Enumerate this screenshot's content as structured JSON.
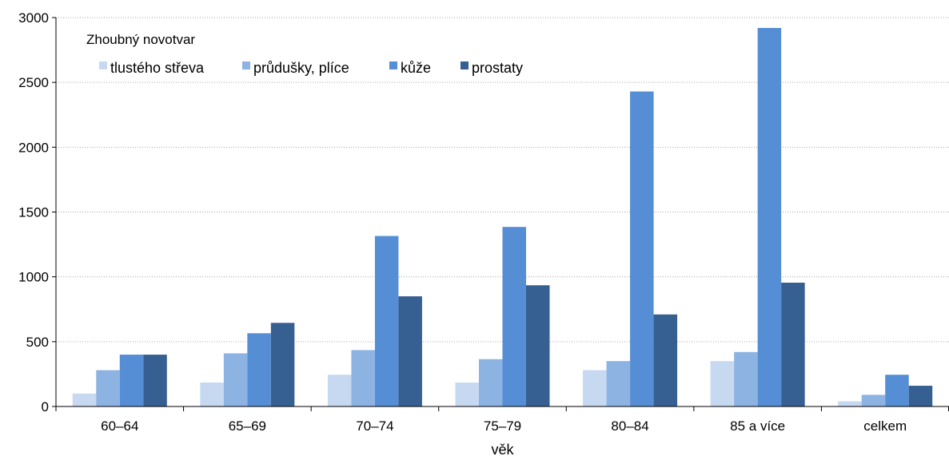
{
  "chart_data": {
    "type": "bar",
    "title": "",
    "xlabel": "věk",
    "ylabel": "",
    "ylim": [
      0,
      3000
    ],
    "yticks": [
      0,
      500,
      1000,
      1500,
      2000,
      2500,
      3000
    ],
    "grid": "horizontal dotted",
    "legend_title": "Zhoubný novotvar",
    "legend_position": "top-left",
    "categories": [
      "60–64",
      "65–69",
      "70–74",
      "75–79",
      "80–84",
      "85 a více",
      "celkem"
    ],
    "series": [
      {
        "name": "tlustého střeva",
        "color": "#c6d9f1",
        "values": [
          100,
          185,
          245,
          185,
          280,
          350,
          40
        ]
      },
      {
        "name": "průdušky, plíce",
        "color": "#8db3e2",
        "values": [
          280,
          410,
          435,
          365,
          350,
          420,
          90
        ]
      },
      {
        "name": "kůže",
        "color": "#558ed5",
        "values": [
          400,
          565,
          1315,
          1385,
          2430,
          2920,
          245
        ]
      },
      {
        "name": "prostaty",
        "color": "#376092",
        "values": [
          400,
          645,
          850,
          935,
          710,
          955,
          160
        ]
      }
    ]
  }
}
